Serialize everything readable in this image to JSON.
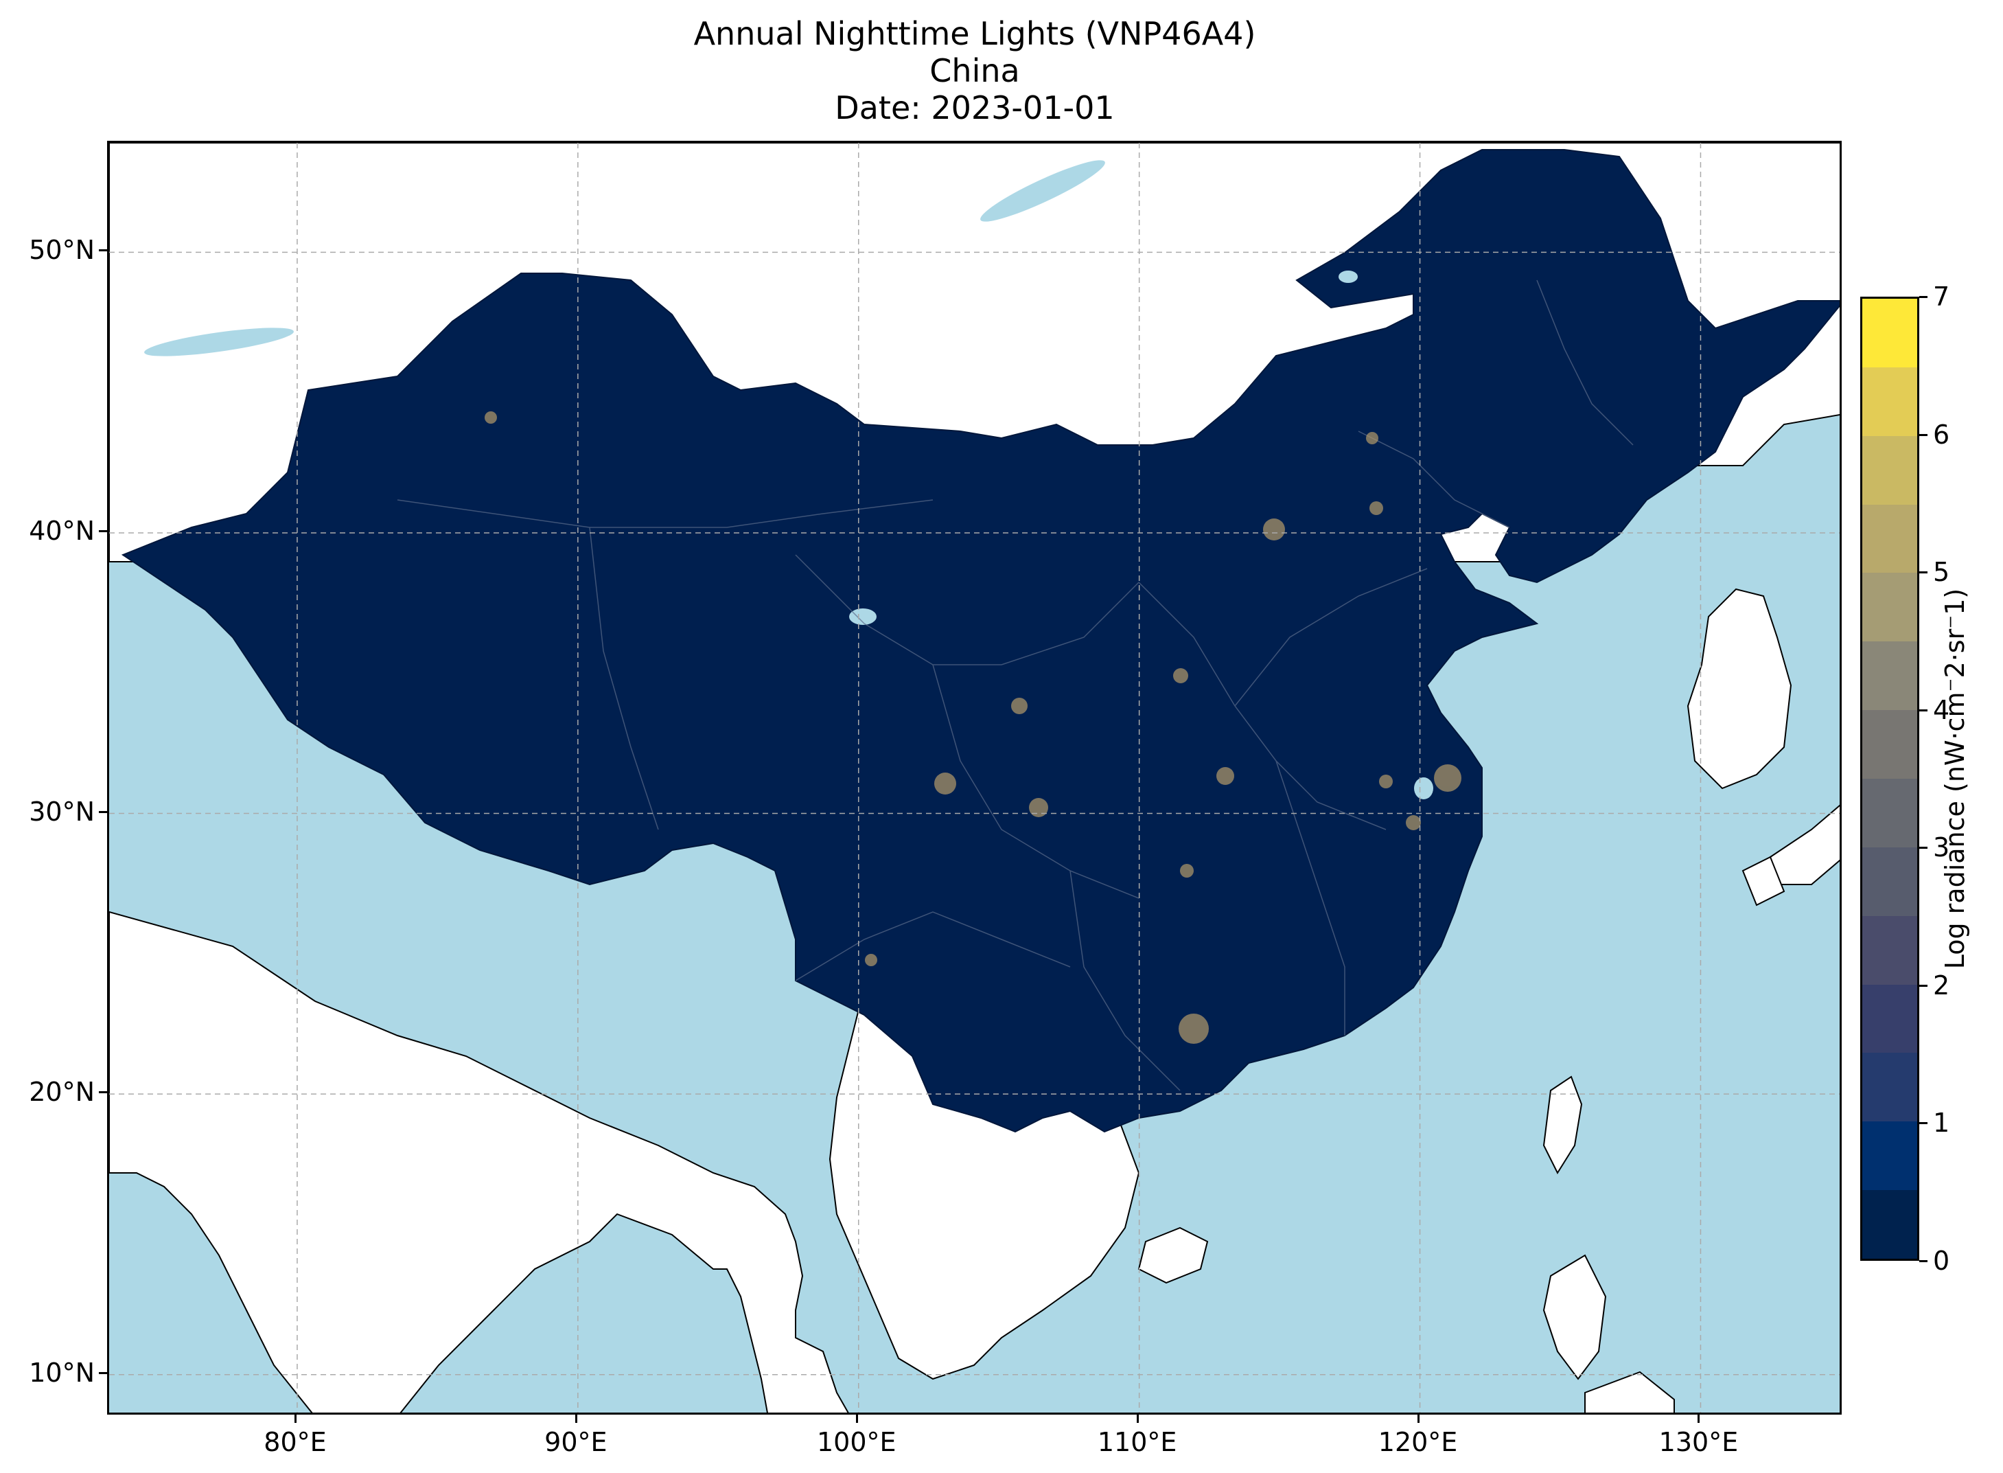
{
  "title": {
    "line1": "Annual Nighttime Lights (VNP46A4)",
    "line2": "China",
    "line3": "Date: 2023-01-01"
  },
  "map": {
    "extent": {
      "lon_min": 73.3,
      "lon_max": 135.1,
      "lat_min": 8.5,
      "lat_max": 53.9
    },
    "lon_ticks": [
      {
        "value": 80,
        "label": "80°E"
      },
      {
        "value": 90,
        "label": "90°E"
      },
      {
        "value": 100,
        "label": "100°E"
      },
      {
        "value": 110,
        "label": "110°E"
      },
      {
        "value": 120,
        "label": "120°E"
      },
      {
        "value": 130,
        "label": "130°E"
      }
    ],
    "lat_ticks": [
      {
        "value": 10,
        "label": "10°N"
      },
      {
        "value": 20,
        "label": "20°N"
      },
      {
        "value": 30,
        "label": "30°N"
      },
      {
        "value": 40,
        "label": "40°N"
      },
      {
        "value": 50,
        "label": "50°N"
      }
    ],
    "gridlines": true,
    "colors": {
      "ocean": "#add8e6",
      "land": "#ffffff",
      "china_fill": "#001f4f",
      "border": "#888888",
      "gridline": "#aaaaaa",
      "light_glow": "#b39a6a"
    }
  },
  "colorbar": {
    "label": "Log radiance (nW·cm⁻2·sr⁻1)",
    "min": 0,
    "max": 7,
    "ticks": [
      {
        "value": 0,
        "label": "0"
      },
      {
        "value": 1,
        "label": "1"
      },
      {
        "value": 2,
        "label": "2"
      },
      {
        "value": 3,
        "label": "3"
      },
      {
        "value": 4,
        "label": "4"
      },
      {
        "value": 5,
        "label": "5"
      },
      {
        "value": 6,
        "label": "6"
      },
      {
        "value": 7,
        "label": "7"
      }
    ],
    "colors": [
      "#00224e",
      "#00306f",
      "#253b6e",
      "#373f6b",
      "#4a4c6b",
      "#575c6d",
      "#666970",
      "#787672",
      "#8a8778",
      "#a59c74",
      "#b8a96b",
      "#cab963",
      "#e3cc55",
      "#fee838"
    ]
  }
}
